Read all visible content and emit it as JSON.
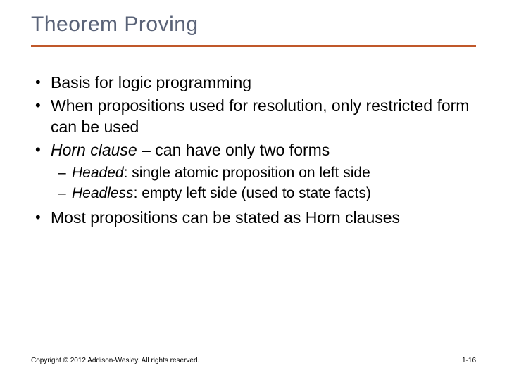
{
  "colors": {
    "title": "#5a6378",
    "rule": "#c0582a",
    "body": "#000000",
    "footer": "#000000",
    "background": "#ffffff"
  },
  "fonts": {
    "title_size": 30,
    "body_size": 23,
    "sub_size": 21,
    "footer_size": 10
  },
  "title": "Theorem Proving",
  "bullets": {
    "b1": "Basis for logic programming",
    "b2": "When propositions used for resolution, only restricted form can be used",
    "b3_term": "Horn clause",
    "b3_rest": " – can have only two forms",
    "b3_sub1_term": "Headed",
    "b3_sub1_rest": ": single atomic proposition on left side",
    "b3_sub2_term": "Headless",
    "b3_sub2_rest": ": empty left side (used to state facts)",
    "b4": "Most propositions can be stated as Horn clauses"
  },
  "footer": {
    "copyright": "Copyright © 2012 Addison-Wesley. All rights reserved.",
    "page": "1-16"
  }
}
